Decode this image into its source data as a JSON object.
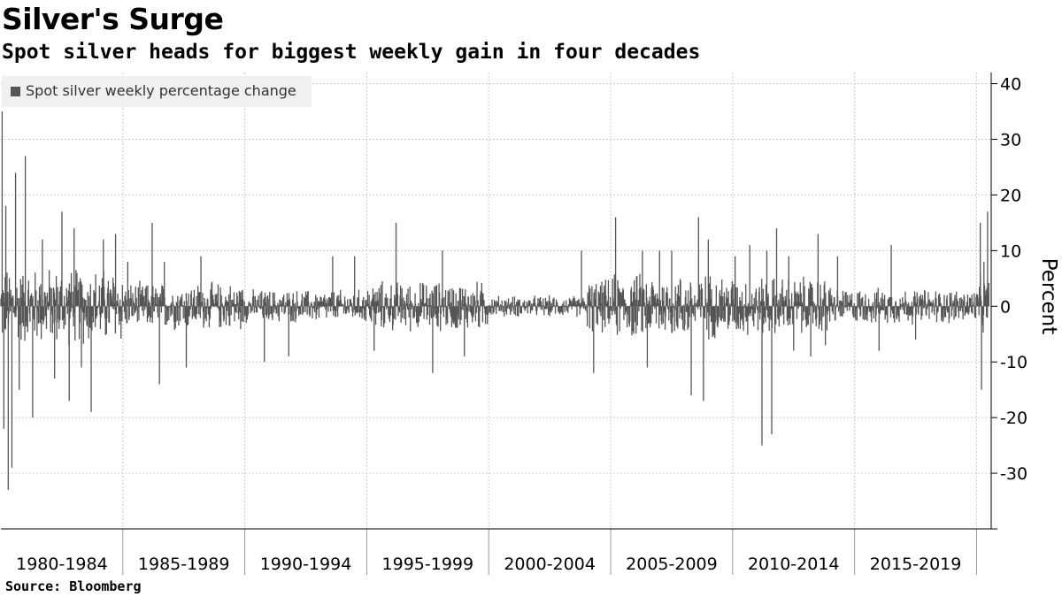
{
  "title": "Silver's Surge",
  "subtitle": "Spot silver heads for biggest weekly gain in four decades",
  "source": "Source: Bloomberg",
  "colors": {
    "bars": "#555555",
    "grid": "#cccccc",
    "legend_bg": "#f0f0f0"
  },
  "chart_data": {
    "type": "bar",
    "legend": [
      "Spot silver weekly percentage change"
    ],
    "ylabel": "Percent",
    "y_axis_side": "right",
    "ylim": [
      -40,
      42
    ],
    "yticks": [
      40,
      30,
      20,
      10,
      0,
      -10,
      -20,
      -30
    ],
    "ytick_labels": [
      "40",
      "30",
      "20",
      "10",
      "0",
      "-10",
      "-20",
      "-30"
    ],
    "x_categories": [
      "1980-1984",
      "1985-1989",
      "1990-1994",
      "1995-1999",
      "2000-2004",
      "2005-2009",
      "2010-2014",
      "2015-2019"
    ],
    "x_range_years": [
      1980.0,
      2020.6
    ],
    "grid": true,
    "series": [
      {
        "name": "Spot silver weekly percentage change",
        "note_points": "notable weekly changes read from chart; remaining weeks are small fluctuations",
        "x": [
          1980.05,
          1980.12,
          1980.2,
          1980.3,
          1980.45,
          1980.6,
          1980.75,
          1981.0,
          1981.3,
          1981.7,
          1982.2,
          1982.5,
          1982.8,
          1983.0,
          1983.3,
          1983.7,
          1984.2,
          1984.7,
          1985.2,
          1986.2,
          1986.5,
          1986.7,
          1987.6,
          1988.2,
          1990.8,
          1991.8,
          1993.6,
          1994.5,
          1995.3,
          1996.2,
          1997.7,
          1998.1,
          1999.0,
          2003.8,
          2004.3,
          2005.2,
          2006.3,
          2006.5,
          2007.0,
          2007.5,
          2008.3,
          2008.6,
          2008.8,
          2009.0,
          2010.1,
          2010.7,
          2011.2,
          2011.4,
          2011.6,
          2011.8,
          2012.3,
          2012.5,
          2013.2,
          2013.5,
          2013.8,
          2014.3,
          2016.0,
          2016.5,
          2017.5,
          2020.15,
          2020.2,
          2020.3,
          2020.45
        ],
        "values": [
          35,
          -22,
          18,
          -33,
          -29,
          24,
          -15,
          27,
          -20,
          12,
          -13,
          17,
          -17,
          14,
          -11,
          -19,
          12,
          13,
          8,
          15,
          -14,
          8,
          -11,
          9,
          -10,
          -9,
          9,
          9,
          -8,
          15,
          -12,
          10,
          -9,
          10,
          -12,
          16,
          10,
          -11,
          10,
          10,
          -16,
          16,
          -17,
          12,
          9,
          11,
          -25,
          10,
          -23,
          14,
          9,
          -8,
          -9,
          13,
          -7,
          9,
          -8,
          11,
          -6,
          15,
          -15,
          8,
          17
        ]
      }
    ]
  }
}
